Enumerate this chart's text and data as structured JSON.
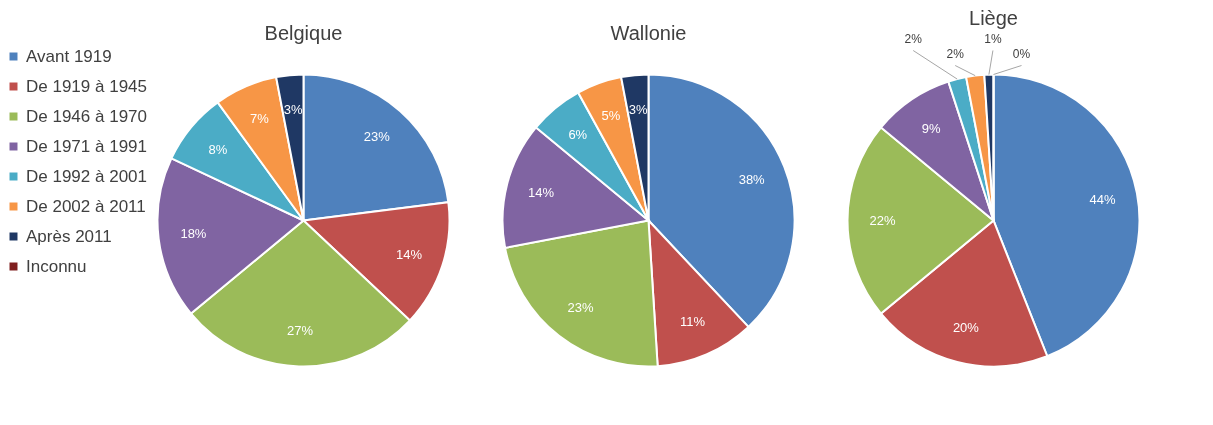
{
  "chart_data": [
    {
      "type": "pie",
      "title": "Belgique",
      "legend": "left",
      "categories": [
        "Avant 1919",
        "De 1919 à 1945",
        "De 1946 à 1970",
        "De 1971 à 1991",
        "De 1992 à 2001",
        "De 2002 à 2011",
        "Après 2011",
        "Inconnu"
      ],
      "values": [
        23,
        14,
        27,
        18,
        8,
        7,
        3,
        null
      ],
      "value_labels": [
        "23%",
        "14%",
        "27%",
        "18%",
        "8%",
        "7%",
        "3%",
        null
      ],
      "colors": [
        "#4f81bd",
        "#c0504d",
        "#9bbb59",
        "#8064a2",
        "#4bacc6",
        "#f79646",
        "#1f3864",
        "#7f1f1f"
      ]
    },
    {
      "type": "pie",
      "title": "Wallonie",
      "categories": [
        null,
        null,
        null,
        null,
        null,
        null,
        null,
        null
      ],
      "values": [
        38,
        11,
        23,
        14,
        6,
        5,
        3,
        null
      ],
      "value_labels": [
        "38%",
        "11%",
        "23%",
        "14%",
        "6%",
        "5%",
        "3%",
        null
      ],
      "colors": [
        "#4f81bd",
        "#c0504d",
        "#9bbb59",
        "#8064a2",
        "#4bacc6",
        "#f79646",
        "#1f3864",
        "#7f1f1f"
      ]
    },
    {
      "type": "pie",
      "title": "Liège",
      "categories": [
        null,
        null,
        null,
        null,
        null,
        null,
        null,
        null
      ],
      "values": [
        44,
        20,
        22,
        9,
        2,
        2,
        1,
        0
      ],
      "value_labels": [
        "44%",
        "20%",
        "22%",
        "9%",
        "2%",
        "2%",
        "1%",
        "0%"
      ],
      "colors": [
        "#4f81bd",
        "#c0504d",
        "#9bbb59",
        "#8064a2",
        "#4bacc6",
        "#f79646",
        "#1f3864",
        "#7f1f1f"
      ]
    }
  ]
}
